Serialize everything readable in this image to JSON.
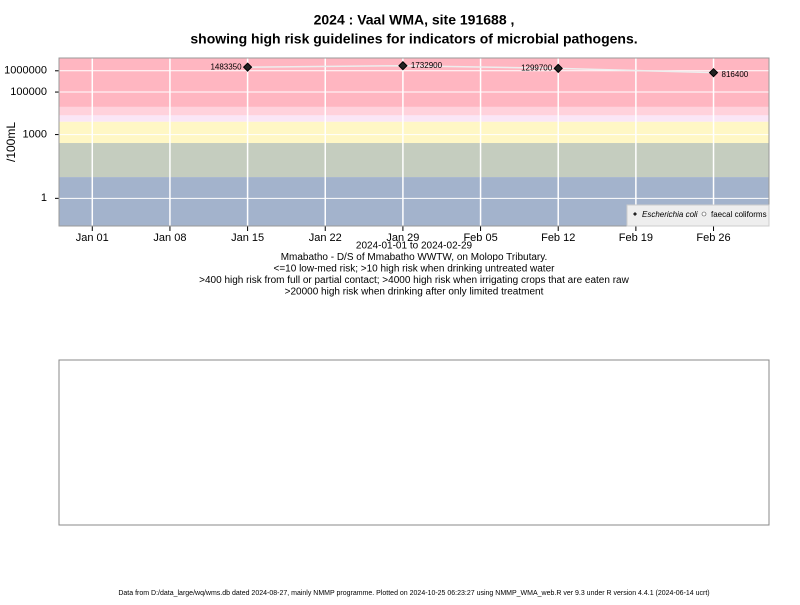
{
  "chart_data": {
    "type": "scatter",
    "title": "2024 : Vaal WMA, site 191688 ,",
    "subtitle": "showing high risk guidelines for indicators of microbial pathogens.",
    "y_label": "/100mL",
    "log_y": true,
    "grid": true,
    "legend": "bottom-right",
    "ylim": [
      0.05,
      4000000
    ],
    "yticks": [
      1,
      1000,
      100000,
      1000000
    ],
    "xlim": [
      "2023-12-29",
      "2024-03-02"
    ],
    "xticks": [
      {
        "value": "2024-01-01",
        "label": "Jan 01"
      },
      {
        "value": "2024-01-08",
        "label": "Jan 08"
      },
      {
        "value": "2024-01-15",
        "label": "Jan 15"
      },
      {
        "value": "2024-01-22",
        "label": "Jan 22"
      },
      {
        "value": "2024-01-29",
        "label": "Jan 29"
      },
      {
        "value": "2024-02-05",
        "label": "Feb 05"
      },
      {
        "value": "2024-02-12",
        "label": "Feb 12"
      },
      {
        "value": "2024-02-19",
        "label": "Feb 19"
      },
      {
        "value": "2024-02-26",
        "label": "Feb 26"
      }
    ],
    "bands": [
      {
        "range": [
          20000,
          4000000
        ],
        "color": "#ffb6c1"
      },
      {
        "range": [
          8000,
          20000
        ],
        "color": "#ffd2dc"
      },
      {
        "range": [
          4000,
          8000
        ],
        "color": "#fae6f6"
      },
      {
        "range": [
          400,
          4000
        ],
        "color": "#fff7c5"
      },
      {
        "range": [
          10,
          400
        ],
        "color": "#c5cdbf"
      },
      {
        "range": [
          0.05,
          10
        ],
        "color": "#a3b3cc"
      }
    ],
    "x": [
      "2024-01-15",
      "2024-01-29",
      "2024-02-12",
      "2024-02-26"
    ],
    "series": [
      {
        "name": "Escherichia coli",
        "color": "#222222",
        "values": [
          1483350,
          1732900,
          1299700,
          816400
        ]
      },
      {
        "name": "faecal coliforms",
        "color": "#ffffff",
        "values": [
          null,
          null,
          null,
          null
        ]
      }
    ],
    "notes": [
      "2024-01-01 to 2024-02-29",
      "Mmabatho - D/S of Mmabatho WWTW, on Molopo Tributary.",
      "<=10 low-med risk; >10 high risk when drinking untreated water",
      ">400 high risk from full or partial contact; >4000 high risk when irrigating crops that are eaten raw",
      ">20000 high risk when drinking after only limited treatment"
    ],
    "footer": "Data from D:/data_large/wq/wms.db dated 2024-08-27, mainly NMMP programme. Plotted on 2024-10-25 06:23:27 using NMMP_WMA_web.R ver 9.3 under R version 4.4.1 (2024-06-14 ucrt)"
  }
}
